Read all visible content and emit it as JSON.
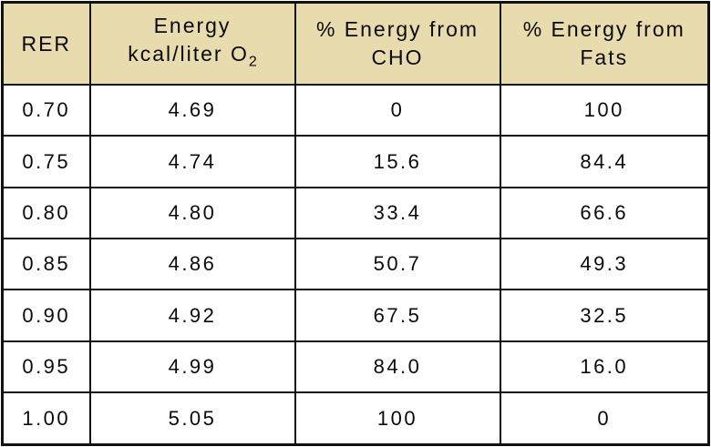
{
  "table": {
    "header": {
      "rer": "RER",
      "energy_line1": "Energy",
      "energy_line2": "kcal/liter O",
      "energy_sub": "2",
      "cho_line1": "% Energy from",
      "cho_line2": "CHO",
      "fats_line1": "% Energy from",
      "fats_line2": "Fats"
    },
    "rows": [
      {
        "rer": "0.70",
        "energy": "4.69",
        "cho": "0",
        "fats": "100"
      },
      {
        "rer": "0.75",
        "energy": "4.74",
        "cho": "15.6",
        "fats": "84.4"
      },
      {
        "rer": "0.80",
        "energy": "4.80",
        "cho": "33.4",
        "fats": "66.6"
      },
      {
        "rer": "0.85",
        "energy": "4.86",
        "cho": "50.7",
        "fats": "49.3"
      },
      {
        "rer": "0.90",
        "energy": "4.92",
        "cho": "67.5",
        "fats": "32.5"
      },
      {
        "rer": "0.95",
        "energy": "4.99",
        "cho": "84.0",
        "fats": "16.0"
      },
      {
        "rer": "1.00",
        "energy": "5.05",
        "cho": "100",
        "fats": "0"
      }
    ]
  },
  "colors": {
    "header_background": "#e8dcae",
    "border": "#121212",
    "cell_background": "#ffffff",
    "text": "#0a0a0a"
  },
  "chart_data": {
    "type": "table",
    "title": "",
    "columns": [
      "RER",
      "Energy kcal/liter O2",
      "% Energy from CHO",
      "% Energy from Fats"
    ],
    "rows": [
      [
        0.7,
        4.69,
        0,
        100
      ],
      [
        0.75,
        4.74,
        15.6,
        84.4
      ],
      [
        0.8,
        4.8,
        33.4,
        66.6
      ],
      [
        0.85,
        4.86,
        50.7,
        49.3
      ],
      [
        0.9,
        4.92,
        67.5,
        32.5
      ],
      [
        0.95,
        4.99,
        84.0,
        16.0
      ],
      [
        1.0,
        5.05,
        100,
        0
      ]
    ]
  }
}
